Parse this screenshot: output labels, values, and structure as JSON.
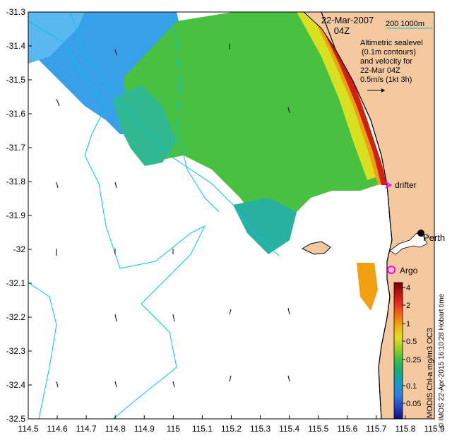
{
  "map": {
    "date_label": "22-Mar-2007",
    "time_label": "04Z",
    "isobath_label": "200  1000m",
    "legend_lines": [
      "Altimetric sealevel",
      "(0.1m contours)",
      "and velocity for",
      "22-Mar 04Z",
      "0.5m/s (1kt 3h)"
    ],
    "x_ticks": [
      "114.5",
      "114.6",
      "114.7",
      "114.8",
      "114.9",
      "115",
      "115.1",
      "115.2",
      "115.3",
      "115.4",
      "115.5",
      "115.6",
      "115.7",
      "115.8",
      "115.9"
    ],
    "y_ticks": [
      "-31.3",
      "-31.4",
      "-31.5",
      "-31.6",
      "-31.7",
      "-31.8",
      "-31.9",
      "-32",
      "-32.1",
      "-32.2",
      "-32.3",
      "-32.4",
      "-32.5"
    ],
    "lon_range": [
      114.5,
      115.9
    ],
    "lat_range": [
      -32.5,
      -31.3
    ],
    "markers": {
      "drifter_label": "drifter",
      "argo_label": "Argo",
      "city_label": "Perth"
    },
    "colorbar": {
      "ticks": [
        "4",
        "2",
        "1",
        "0.5",
        "0.25",
        "0.1",
        "0.05"
      ],
      "vertical_label": "MODIS Chl-a mg/m3 OC3",
      "colors": [
        "#7a0000",
        "#c01010",
        "#e83020",
        "#f07010",
        "#f0b010",
        "#e0e020",
        "#a0d020",
        "#40c040",
        "#10b070",
        "#10a0c0",
        "#3080e0",
        "#2040c0",
        "#101080"
      ]
    },
    "credit": "© IMOS 22-Apr-2015 16:10:28 Hobart time",
    "colors": {
      "land": "#f5c9a0",
      "coast": "#000000",
      "isobath": "#00c8e0",
      "magenta": "#ff00ff"
    }
  }
}
